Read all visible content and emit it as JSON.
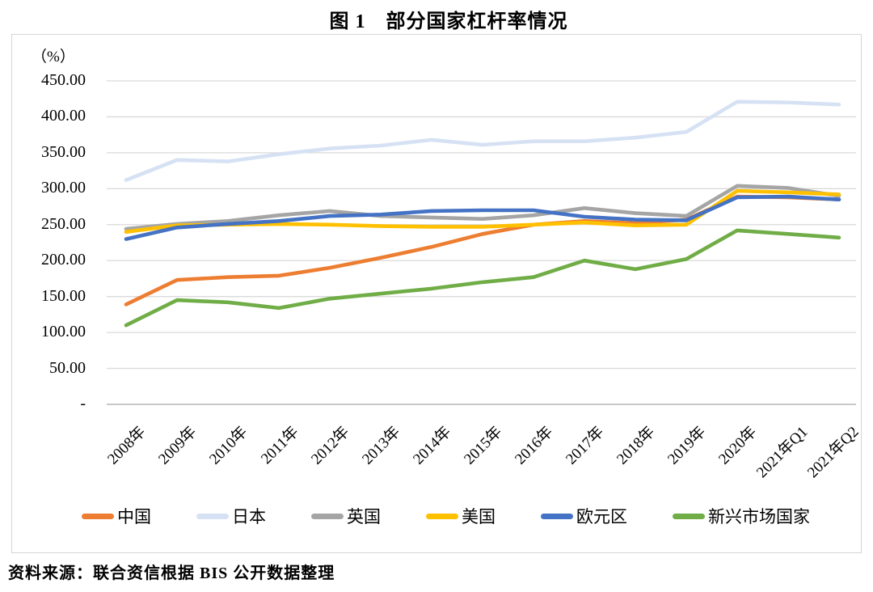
{
  "title": "图 1　部分国家杠杆率情况",
  "y_axis_unit": "（%）",
  "source": "资料来源：联合资信根据 BIS 公开数据整理",
  "colors": {
    "grid": "#dadada",
    "axis": "#bfbfbf",
    "frame": "#d6d6d6"
  },
  "chart_data": {
    "type": "line",
    "title": "图 1　部分国家杠杆率情况",
    "unit": "%",
    "grid": true,
    "legend_position": "bottom",
    "ylim": [
      0,
      450
    ],
    "ytick_step": 50,
    "ytick_labels": [
      "450.00",
      "400.00",
      "350.00",
      "300.00",
      "250.00",
      "200.00",
      "150.00",
      "100.00",
      "50.00",
      "-"
    ],
    "categories": [
      "2008年",
      "2009年",
      "2010年",
      "2011年",
      "2012年",
      "2013年",
      "2014年",
      "2015年",
      "2016年",
      "2017年",
      "2018年",
      "2019年",
      "2020年",
      "2021年Q1",
      "2021年Q2"
    ],
    "series": [
      {
        "id": "china",
        "name": "中国",
        "color": "#ED7D31",
        "values": [
          139,
          173,
          177,
          179,
          190,
          204,
          219,
          237,
          250,
          255,
          252,
          257,
          289,
          288,
          285
        ]
      },
      {
        "id": "japan",
        "name": "日本",
        "color": "#D6E2F4",
        "values": [
          312,
          340,
          338,
          348,
          356,
          360,
          368,
          361,
          366,
          366,
          371,
          379,
          421,
          420,
          417
        ]
      },
      {
        "id": "uk",
        "name": "英国",
        "color": "#A5A5A5",
        "values": [
          244,
          251,
          255,
          263,
          269,
          262,
          260,
          258,
          263,
          273,
          266,
          262,
          304,
          301,
          290
        ]
      },
      {
        "id": "us",
        "name": "美国",
        "color": "#FFC000",
        "values": [
          240,
          249,
          250,
          251,
          250,
          248,
          247,
          247,
          250,
          253,
          249,
          250,
          297,
          295,
          292
        ]
      },
      {
        "id": "eurozone",
        "name": "欧元区",
        "color": "#4472C4",
        "values": [
          230,
          246,
          251,
          255,
          262,
          264,
          269,
          270,
          270,
          261,
          257,
          256,
          288,
          289,
          285
        ]
      },
      {
        "id": "emerging-markets",
        "name": "新兴市场国家",
        "color": "#70AD47",
        "values": [
          110,
          145,
          142,
          134,
          147,
          154,
          161,
          170,
          177,
          200,
          188,
          202,
          242,
          237,
          232
        ]
      }
    ]
  }
}
